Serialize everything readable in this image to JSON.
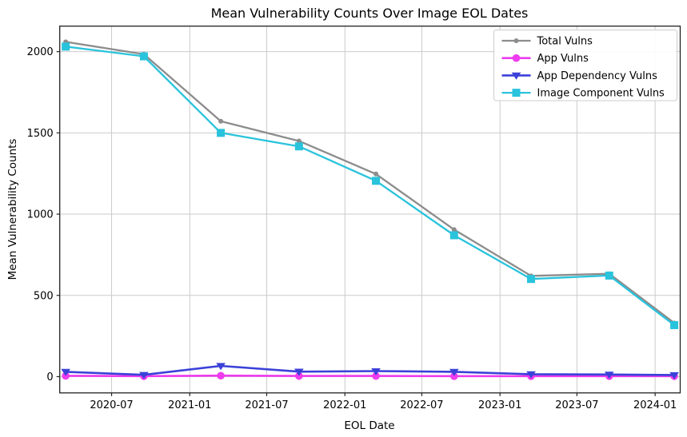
{
  "chart_data": {
    "type": "line",
    "title": "Mean Vulnerability Counts Over Image EOL Dates",
    "xlabel": "EOL Date",
    "ylabel": "Mean Vulnerability Counts",
    "x": [
      "2020-03",
      "2020-09",
      "2021-03",
      "2021-09",
      "2022-03",
      "2022-09",
      "2023-03",
      "2023-09",
      "2024-02"
    ],
    "series": [
      {
        "name": "Total Vulns",
        "color": "#8c8c8c",
        "marker": "circle-small",
        "linewidth": 2.3,
        "values": [
          2060,
          1984,
          1572,
          1450,
          1247,
          905,
          620,
          633,
          330
        ]
      },
      {
        "name": "App Vulns",
        "color": "#ee3cee",
        "marker": "circle",
        "linewidth": 2.6,
        "values": [
          5,
          3,
          6,
          4,
          4,
          3,
          3,
          3,
          3
        ]
      },
      {
        "name": "App Dependency Vulns",
        "color": "#3b41d8",
        "marker": "triangle-down",
        "linewidth": 2.6,
        "values": [
          30,
          11,
          66,
          31,
          34,
          30,
          15,
          13,
          10
        ]
      },
      {
        "name": "Image Component Vulns",
        "color": "#29c3dc",
        "marker": "square",
        "linewidth": 2.3,
        "values": [
          2031,
          1971,
          1500,
          1417,
          1205,
          870,
          601,
          622,
          317
        ]
      }
    ],
    "xticks": [
      {
        "label": "2020-07",
        "date": "2020-07-01"
      },
      {
        "label": "2021-01",
        "date": "2021-01-01"
      },
      {
        "label": "2021-07",
        "date": "2021-07-01"
      },
      {
        "label": "2022-01",
        "date": "2022-01-01"
      },
      {
        "label": "2022-07",
        "date": "2022-07-01"
      },
      {
        "label": "2023-01",
        "date": "2023-01-01"
      },
      {
        "label": "2023-07",
        "date": "2023-07-01"
      },
      {
        "label": "2024-01",
        "date": "2024-01-01"
      }
    ],
    "yticks": [
      0,
      500,
      1000,
      1500,
      2000
    ],
    "xlim": [
      "2020-03-01",
      "2024-02-29"
    ],
    "ylim": [
      -100,
      2157
    ],
    "grid": true,
    "legend_position": "upper right"
  }
}
